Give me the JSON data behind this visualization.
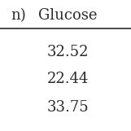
{
  "header_left": "n)",
  "header_right": "Glucose",
  "rows": [
    "32.52",
    "22.44",
    "33.75"
  ],
  "bg_color": "#ffffff",
  "text_color": "#2b2b2b",
  "header_fontsize": 13,
  "cell_fontsize": 13,
  "line_color": "#2b2b2b"
}
